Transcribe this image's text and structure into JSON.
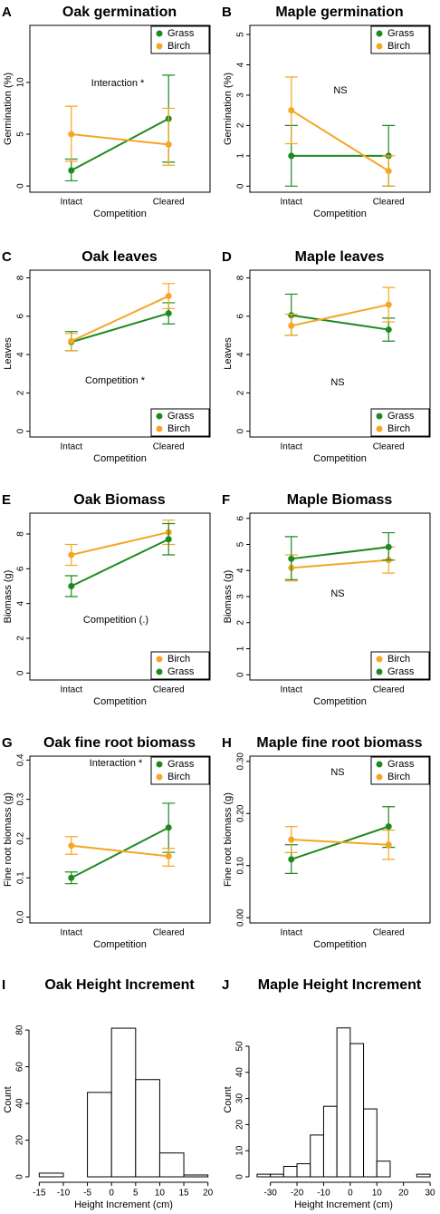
{
  "chart_data": [
    {
      "label": "A",
      "type": "line",
      "title": "Oak germination",
      "xlabel": "Competition",
      "ylabel": "Germination (%)",
      "categories": [
        "Intact",
        "Cleared"
      ],
      "ylim": [
        -0.6,
        15.5
      ],
      "yticks": [
        0,
        5,
        10
      ],
      "annotation": "Interaction *",
      "legend": "top-right",
      "series": [
        {
          "name": "Grass",
          "color": "#1e8a1e",
          "values": [
            1.5,
            6.5
          ],
          "lower": [
            0.5,
            2.3
          ],
          "upper": [
            2.6,
            10.7
          ]
        },
        {
          "name": "Birch",
          "color": "#f5a623",
          "values": [
            5.0,
            4.0
          ],
          "lower": [
            2.4,
            2.0
          ],
          "upper": [
            7.7,
            7.5
          ]
        }
      ]
    },
    {
      "label": "B",
      "type": "line",
      "title": "Maple germination",
      "xlabel": "Competition",
      "ylabel": "Germination (%)",
      "categories": [
        "Intact",
        "Cleared"
      ],
      "ylim": [
        -0.2,
        5.3
      ],
      "yticks": [
        0,
        1,
        2,
        3,
        4,
        5
      ],
      "annotation": "NS",
      "legend": "top-right",
      "series": [
        {
          "name": "Grass",
          "color": "#1e8a1e",
          "values": [
            1.0,
            1.0
          ],
          "lower": [
            0,
            0
          ],
          "upper": [
            2.0,
            2.0
          ]
        },
        {
          "name": "Birch",
          "color": "#f5a623",
          "values": [
            2.5,
            0.5
          ],
          "lower": [
            1.4,
            0
          ],
          "upper": [
            3.6,
            1.0
          ]
        }
      ]
    },
    {
      "label": "C",
      "type": "line",
      "title": "Oak leaves",
      "xlabel": "Competition",
      "ylabel": "Leaves",
      "categories": [
        "Intact",
        "Cleared"
      ],
      "ylim": [
        -0.3,
        8.4
      ],
      "yticks": [
        0,
        2,
        4,
        6,
        8
      ],
      "annotation": "Competition *",
      "legend": "bottom-right",
      "series": [
        {
          "name": "Grass",
          "color": "#1e8a1e",
          "values": [
            4.65,
            6.15
          ],
          "lower": [
            4.2,
            5.6
          ],
          "upper": [
            5.2,
            6.7
          ]
        },
        {
          "name": "Birch",
          "color": "#f5a623",
          "values": [
            4.7,
            7.05
          ],
          "lower": [
            4.2,
            6.4
          ],
          "upper": [
            5.1,
            7.7
          ]
        }
      ]
    },
    {
      "label": "D",
      "type": "line",
      "title": "Maple leaves",
      "xlabel": "Competition",
      "ylabel": "Leaves",
      "categories": [
        "Intact",
        "Cleared"
      ],
      "ylim": [
        -0.3,
        8.4
      ],
      "yticks": [
        0,
        2,
        4,
        6,
        8
      ],
      "annotation": "NS",
      "legend": "bottom-right",
      "series": [
        {
          "name": "Grass",
          "color": "#1e8a1e",
          "values": [
            6.05,
            5.3
          ],
          "lower": [
            5.0,
            4.7
          ],
          "upper": [
            7.15,
            5.9
          ]
        },
        {
          "name": "Birch",
          "color": "#f5a623",
          "values": [
            5.5,
            6.6
          ],
          "lower": [
            5.0,
            5.7
          ],
          "upper": [
            6.1,
            7.5
          ]
        }
      ]
    },
    {
      "label": "E",
      "type": "line",
      "title": "Oak Biomass",
      "xlabel": "Competition",
      "ylabel": "Biomass (g)",
      "categories": [
        "Intact",
        "Cleared"
      ],
      "ylim": [
        -0.4,
        9.2
      ],
      "yticks": [
        0,
        2,
        4,
        6,
        8
      ],
      "annotation": "Competition (.)",
      "legend": "bottom-right",
      "series": [
        {
          "name": "Birch",
          "color": "#f5a623",
          "values": [
            6.8,
            8.1
          ],
          "lower": [
            6.2,
            7.4
          ],
          "upper": [
            7.4,
            8.8
          ]
        },
        {
          "name": "Grass",
          "color": "#1e8a1e",
          "values": [
            5.0,
            7.7
          ],
          "lower": [
            4.4,
            6.8
          ],
          "upper": [
            5.6,
            8.6
          ]
        }
      ]
    },
    {
      "label": "F",
      "type": "line",
      "title": "Maple Biomass",
      "xlabel": "Competition",
      "ylabel": "Biomass (g)",
      "categories": [
        "Intact",
        "Cleared"
      ],
      "ylim": [
        -0.2,
        6.2
      ],
      "yticks": [
        0,
        1,
        2,
        3,
        4,
        5,
        6
      ],
      "annotation": "NS",
      "legend": "bottom-right",
      "series": [
        {
          "name": "Birch",
          "color": "#f5a623",
          "values": [
            4.1,
            4.4
          ],
          "lower": [
            3.6,
            3.9
          ],
          "upper": [
            4.6,
            4.9
          ]
        },
        {
          "name": "Grass",
          "color": "#1e8a1e",
          "values": [
            4.45,
            4.9
          ],
          "lower": [
            3.65,
            4.4
          ],
          "upper": [
            5.3,
            5.45
          ]
        }
      ]
    },
    {
      "label": "G",
      "type": "line",
      "title": "Oak fine root biomass",
      "xlabel": "Competition",
      "ylabel": "Fine root biomass (g)",
      "categories": [
        "Intact",
        "Cleared"
      ],
      "ylim": [
        -0.015,
        0.41
      ],
      "yticks": [
        {
          "value": 0,
          "label": "0.0"
        },
        0.1,
        0.2,
        0.3,
        0.4
      ],
      "annotation": "Interaction *",
      "legend": "top-right",
      "series": [
        {
          "name": "Grass",
          "color": "#1e8a1e",
          "values": [
            0.1,
            0.228
          ],
          "lower": [
            0.085,
            0.165
          ],
          "upper": [
            0.115,
            0.29
          ]
        },
        {
          "name": "Birch",
          "color": "#f5a623",
          "values": [
            0.182,
            0.155
          ],
          "lower": [
            0.16,
            0.13
          ],
          "upper": [
            0.205,
            0.175
          ]
        }
      ]
    },
    {
      "label": "H",
      "type": "line",
      "title": "Maple fine root biomass",
      "xlabel": "Competition",
      "ylabel": "Fine root biomass (g)",
      "categories": [
        "Intact",
        "Cleared"
      ],
      "ylim": [
        -0.01,
        0.31
      ],
      "yticks": [
        {
          "value": 0,
          "label": "0.00"
        },
        {
          "value": 0.1,
          "label": "0.10"
        },
        {
          "value": 0.2,
          "label": "0.20"
        },
        {
          "value": 0.3,
          "label": "0.30"
        }
      ],
      "annotation": "NS",
      "legend": "top-right",
      "series": [
        {
          "name": "Grass",
          "color": "#1e8a1e",
          "values": [
            0.112,
            0.175
          ],
          "lower": [
            0.085,
            0.135
          ],
          "upper": [
            0.14,
            0.213
          ]
        },
        {
          "name": "Birch",
          "color": "#f5a623",
          "values": [
            0.15,
            0.14
          ],
          "lower": [
            0.125,
            0.112
          ],
          "upper": [
            0.175,
            0.168
          ]
        }
      ]
    },
    {
      "label": "I",
      "type": "histogram",
      "title": "Oak Height Increment",
      "xlabel": "Height Increment (cm)",
      "ylabel": "Count",
      "bins": [
        -15,
        -10,
        -5,
        0,
        5,
        10,
        15,
        20
      ],
      "counts": [
        2,
        0,
        46,
        81,
        53,
        13,
        1
      ],
      "color": "#ffffff",
      "xlim": [
        -16,
        21
      ],
      "xticks": [
        -15,
        -10,
        -5,
        0,
        5,
        10,
        15,
        20
      ],
      "ylim": [
        0,
        84
      ],
      "yticks": [
        0,
        20,
        40,
        60,
        80
      ]
    },
    {
      "label": "J",
      "type": "histogram",
      "title": "Maple Height Increment",
      "xlabel": "Height Increment (cm)",
      "ylabel": "Count",
      "bins": [
        -35,
        -30,
        -25,
        -20,
        -15,
        -10,
        -5,
        0,
        5,
        10,
        15,
        20,
        25,
        30
      ],
      "counts": [
        1,
        1,
        4,
        5,
        16,
        27,
        57,
        51,
        26,
        6,
        0,
        0,
        1
      ],
      "color": "#ffffff",
      "xlim": [
        -36,
        31
      ],
      "xticks": [
        -30,
        -20,
        -10,
        0,
        10,
        20,
        30
      ],
      "ylim": [
        0,
        59
      ],
      "yticks": [
        0,
        10,
        20,
        30,
        40,
        50
      ]
    }
  ]
}
